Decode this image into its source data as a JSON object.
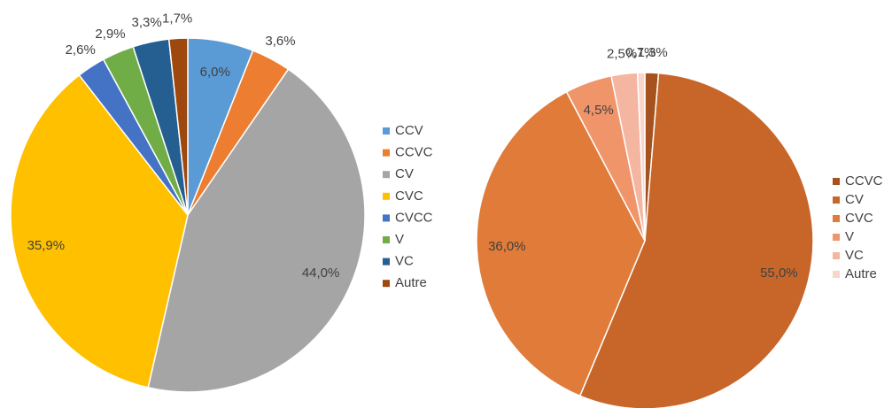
{
  "chart_data": [
    {
      "type": "pie",
      "categories": [
        "CCV",
        "CCVC",
        "CV",
        "CVC",
        "CVCC",
        "V",
        "VC",
        "Autre"
      ],
      "values": [
        6.0,
        3.6,
        44.0,
        35.9,
        2.6,
        2.9,
        3.3,
        1.7
      ],
      "value_labels": [
        "6,0%",
        "3,6%",
        "44,0%",
        "35,9%",
        "2,6%",
        "2,9%",
        "3,3%",
        "1,7%"
      ],
      "colors": [
        "#5b9bd5",
        "#ed7d31",
        "#a5a5a5",
        "#ffc000",
        "#4472c4",
        "#70ad47",
        "#255e91",
        "#9e480e"
      ],
      "legend": "right"
    },
    {
      "type": "pie",
      "categories": [
        "CCVC",
        "CV",
        "CVC",
        "V",
        "VC",
        "Autre"
      ],
      "values": [
        1.3,
        55.0,
        36.0,
        4.5,
        2.5,
        0.7
      ],
      "value_labels": [
        "1,3%",
        "55,0%",
        "36,0%",
        "4,5%",
        "2,5%",
        "0,7%"
      ],
      "colors": [
        "#a5521e",
        "#c8662a",
        "#e07b39",
        "#f0946a",
        "#f4b6a0",
        "#f9d5ca"
      ],
      "legend": "right"
    }
  ]
}
